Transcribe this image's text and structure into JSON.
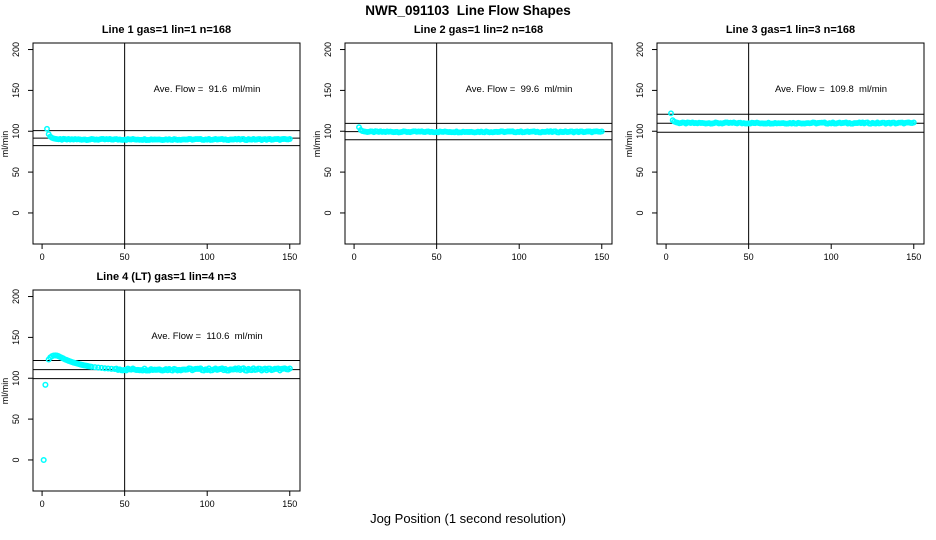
{
  "page": {
    "title": "NWR_091103  Line Flow Shapes",
    "xlabel": "Jog Position (1 second resolution)",
    "background": "#ffffff"
  },
  "colors": {
    "points": "#00ffff",
    "axis": "#000000"
  },
  "chart_data": [
    {
      "type": "scatter",
      "title": "Line 1 gas=1 lin=1 n=168",
      "annotation": "Ave. Flow =  91.6  ml/min",
      "ave_flow_ml_min": 91.6,
      "ylabel": "ml/min",
      "xlim": [
        -5.5,
        156.2
      ],
      "ylim": [
        -38,
        208
      ],
      "xticks": [
        0,
        50,
        100,
        150
      ],
      "yticks": [
        0,
        50,
        100,
        150,
        200
      ],
      "vline_x": 50,
      "hlines": [
        100.8,
        91.6,
        82.4
      ],
      "annotation_pos": [
        100,
        150
      ],
      "points": [
        [
          3,
          103
        ],
        [
          4,
          96.5
        ],
        [
          5,
          93.5
        ],
        [
          6,
          92
        ],
        [
          7,
          91.2
        ],
        [
          8,
          90.8
        ],
        [
          9,
          90.4
        ],
        [
          10,
          90.2
        ]
      ],
      "steady": {
        "from": 11,
        "to": 150,
        "value": 90,
        "noise": 0.7
      },
      "marker": {
        "radius": 2.2,
        "color": "#00ffff"
      }
    },
    {
      "type": "scatter",
      "title": "Line 2 gas=1 lin=2 n=168",
      "annotation": "Ave. Flow =  99.6  ml/min",
      "ave_flow_ml_min": 99.6,
      "ylabel": "ml/min",
      "xlim": [
        -5.5,
        156.2
      ],
      "ylim": [
        -38,
        208
      ],
      "xticks": [
        0,
        50,
        100,
        150
      ],
      "yticks": [
        0,
        50,
        100,
        150,
        200
      ],
      "vline_x": 50,
      "hlines": [
        109.6,
        99.6,
        89.6
      ],
      "annotation_pos": [
        100,
        150
      ],
      "points": [
        [
          3,
          105
        ],
        [
          4,
          101.5
        ],
        [
          5,
          100.3
        ],
        [
          6,
          99.8
        ],
        [
          7,
          99.5
        ]
      ],
      "steady": {
        "from": 8,
        "to": 150,
        "value": 99.3,
        "noise": 0.7
      },
      "marker": {
        "radius": 2.2,
        "color": "#00ffff"
      }
    },
    {
      "type": "scatter",
      "title": "Line 3 gas=1 lin=3 n=168",
      "annotation": "Ave. Flow =  109.8  ml/min",
      "ave_flow_ml_min": 109.8,
      "ylabel": "ml/min",
      "xlim": [
        -5.5,
        156.2
      ],
      "ylim": [
        -38,
        208
      ],
      "xticks": [
        0,
        50,
        100,
        150
      ],
      "yticks": [
        0,
        50,
        100,
        150,
        200
      ],
      "vline_x": 50,
      "hlines": [
        120.8,
        109.8,
        98.8
      ],
      "annotation_pos": [
        100,
        150
      ],
      "points": [
        [
          3,
          122
        ],
        [
          4,
          113.5
        ],
        [
          5,
          111.8
        ],
        [
          6,
          111
        ],
        [
          7,
          110.5
        ]
      ],
      "steady": {
        "from": 8,
        "to": 150,
        "value": 110,
        "noise": 0.8
      },
      "marker": {
        "radius": 2.2,
        "color": "#00ffff"
      }
    },
    {
      "type": "scatter",
      "title": "Line 4 (LT) gas=1 lin=4 n=3",
      "annotation": "Ave. Flow =  110.6  ml/min",
      "ave_flow_ml_min": 110.6,
      "ylabel": "ml/min",
      "xlim": [
        -5.5,
        156.2
      ],
      "ylim": [
        -38,
        208
      ],
      "xticks": [
        0,
        50,
        100,
        150
      ],
      "yticks": [
        0,
        50,
        100,
        150,
        200
      ],
      "vline_x": 50,
      "hlines": [
        121.7,
        110.6,
        99.5
      ],
      "annotation_pos": [
        100,
        150
      ],
      "points": [
        [
          1,
          0
        ],
        [
          2,
          92
        ],
        [
          4,
          123
        ],
        [
          5,
          125.5
        ],
        [
          6,
          127
        ],
        [
          7,
          127.8
        ],
        [
          8,
          128
        ],
        [
          9,
          127.7
        ],
        [
          10,
          127
        ],
        [
          11,
          126
        ],
        [
          12,
          125
        ],
        [
          13,
          124
        ],
        [
          14,
          123
        ],
        [
          15,
          122.2
        ],
        [
          16,
          121.4
        ],
        [
          17,
          120.6
        ],
        [
          18,
          119.9
        ],
        [
          19,
          119.2
        ],
        [
          20,
          118.6
        ],
        [
          21,
          118
        ],
        [
          22,
          117.5
        ],
        [
          23,
          117
        ],
        [
          24,
          116.5
        ],
        [
          25,
          116
        ],
        [
          26,
          115.6
        ],
        [
          27,
          115.2
        ],
        [
          28,
          114.8
        ],
        [
          29,
          114.4
        ],
        [
          30,
          114
        ],
        [
          32,
          113.5
        ],
        [
          34,
          113
        ],
        [
          36,
          112.6
        ],
        [
          38,
          112.2
        ],
        [
          40,
          111.9
        ],
        [
          42,
          111.6
        ],
        [
          44,
          111.3
        ]
      ],
      "steady": {
        "from": 45,
        "to": 150,
        "value": 110.8,
        "noise": 1.4
      },
      "marker": {
        "radius": 2.3,
        "color": "#00ffff"
      }
    }
  ]
}
